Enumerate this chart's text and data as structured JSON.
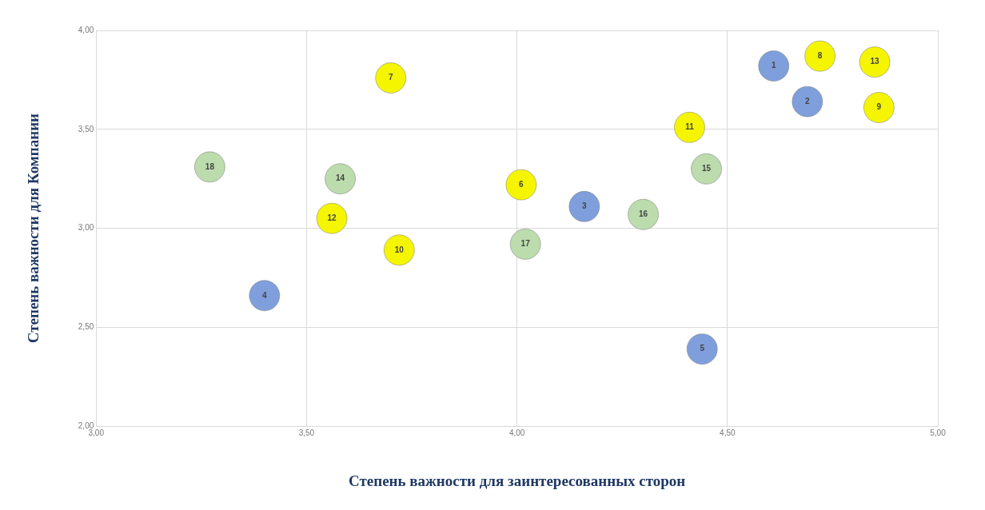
{
  "chart_data": {
    "type": "scatter",
    "xlabel": "Степень важности для заинтересованных сторон",
    "ylabel": "Степень важности для Компании",
    "xlim": [
      3,
      5
    ],
    "ylim": [
      2,
      4
    ],
    "xticks": [
      {
        "value": 3,
        "label": "3,00"
      },
      {
        "value": 3.5,
        "label": "3,50"
      },
      {
        "value": 4,
        "label": "4,00"
      },
      {
        "value": 4.5,
        "label": "4,50"
      },
      {
        "value": 5,
        "label": "5,00"
      }
    ],
    "yticks": [
      {
        "value": 2,
        "label": "2,00"
      },
      {
        "value": 2.5,
        "label": "2,50"
      },
      {
        "value": 3,
        "label": "3,00"
      },
      {
        "value": 3.5,
        "label": "3,50"
      },
      {
        "value": 4,
        "label": "4,00"
      }
    ],
    "grid": true,
    "legend": false,
    "marker": "circle",
    "series": [
      {
        "color": "#7f9fdc",
        "x": [
          4.61,
          4.69,
          4.16,
          3.4,
          4.44
        ],
        "values": [
          3.82,
          3.64,
          3.11,
          2.66,
          2.39
        ]
      },
      {
        "color": "#f5f500",
        "x": [
          4.01,
          3.7,
          4.72,
          4.86,
          3.72,
          4.41,
          3.56,
          4.85
        ],
        "values": [
          3.22,
          3.76,
          3.87,
          3.61,
          2.89,
          3.51,
          3.05,
          3.84
        ]
      },
      {
        "color": "#bcdcad",
        "x": [
          3.58,
          4.45,
          4.3,
          4.02,
          3.27
        ],
        "values": [
          3.25,
          3.3,
          3.07,
          2.92,
          3.31
        ]
      }
    ],
    "annotations": [
      {
        "text": "1",
        "x": 4.61,
        "y": 3.82
      },
      {
        "text": "2",
        "x": 4.69,
        "y": 3.64
      },
      {
        "text": "3",
        "x": 4.16,
        "y": 3.11
      },
      {
        "text": "4",
        "x": 3.4,
        "y": 2.66
      },
      {
        "text": "5",
        "x": 4.44,
        "y": 2.39
      },
      {
        "text": "6",
        "x": 4.01,
        "y": 3.22
      },
      {
        "text": "7",
        "x": 3.7,
        "y": 3.76
      },
      {
        "text": "8",
        "x": 4.72,
        "y": 3.87
      },
      {
        "text": "9",
        "x": 4.86,
        "y": 3.61
      },
      {
        "text": "10",
        "x": 3.72,
        "y": 2.89
      },
      {
        "text": "11",
        "x": 4.41,
        "y": 3.51
      },
      {
        "text": "12",
        "x": 3.56,
        "y": 3.05
      },
      {
        "text": "13",
        "x": 4.85,
        "y": 3.84
      },
      {
        "text": "14",
        "x": 3.58,
        "y": 3.25
      },
      {
        "text": "15",
        "x": 4.45,
        "y": 3.3
      },
      {
        "text": "16",
        "x": 4.3,
        "y": 3.07
      },
      {
        "text": "17",
        "x": 4.02,
        "y": 2.92
      },
      {
        "text": "18",
        "x": 3.27,
        "y": 3.31
      }
    ]
  }
}
